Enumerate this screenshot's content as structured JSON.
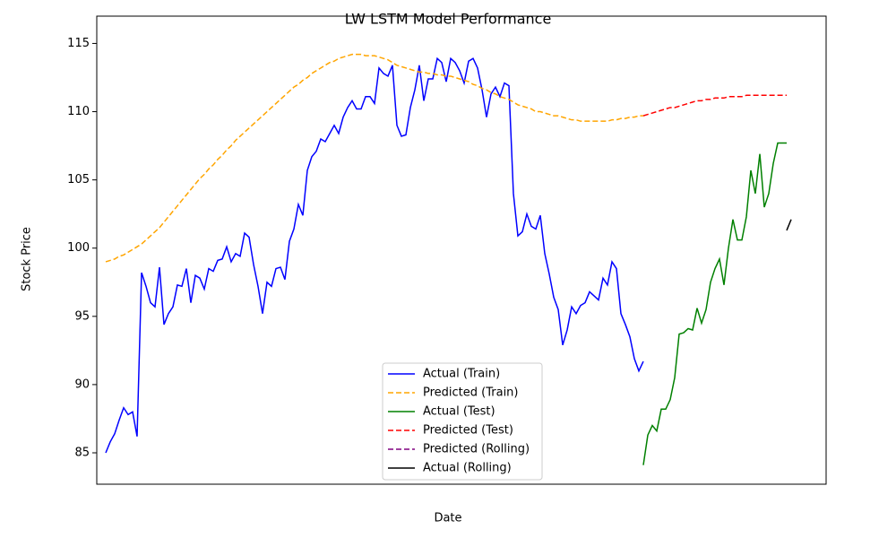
{
  "chart_data": {
    "type": "line",
    "title": "LW LSTM Model Performance",
    "x_label": "Date",
    "y_label": "Stock Price",
    "ylim": [
      82.7,
      117
    ],
    "yticks": [
      85,
      90,
      95,
      100,
      105,
      110,
      115
    ],
    "grid": false,
    "legend": "lower center",
    "series": [
      {
        "name": "Actual (Train)",
        "color": "#0000ff",
        "linestyle": "solid",
        "values": [
          85.0,
          85.8,
          86.4,
          87.4,
          88.3,
          87.8,
          88.0,
          86.2,
          98.2,
          97.2,
          96.0,
          95.7,
          98.6,
          94.4,
          95.2,
          95.7,
          97.3,
          97.2,
          98.5,
          96.0,
          98.0,
          97.8,
          97.0,
          98.5,
          98.3,
          99.1,
          99.2,
          100.1,
          99.0,
          99.6,
          99.4,
          101.1,
          100.8,
          98.8,
          97.2,
          95.2,
          97.5,
          97.2,
          98.5,
          98.6,
          97.7,
          100.5,
          101.4,
          103.2,
          102.4,
          105.7,
          106.7,
          107.1,
          108.0,
          107.8,
          108.4,
          109.0,
          108.4,
          109.6,
          110.3,
          110.8,
          110.2,
          110.2,
          111.1,
          111.1,
          110.6,
          113.2,
          112.8,
          112.6,
          113.4,
          109.0,
          108.2,
          108.3,
          110.3,
          111.6,
          113.4,
          110.8,
          112.4,
          112.4,
          113.9,
          113.6,
          112.2,
          113.9,
          113.6,
          113.0,
          112.1,
          113.7,
          113.9,
          113.2,
          111.6,
          109.6,
          111.3,
          111.8,
          111.1,
          112.1,
          111.9,
          104.0,
          100.9,
          101.2,
          102.5,
          101.6,
          101.4,
          102.4,
          99.6,
          98.1,
          96.4,
          95.5,
          92.9,
          94.0,
          95.7,
          95.2,
          95.8,
          96.0,
          96.8,
          96.5,
          96.2,
          97.8,
          97.3,
          99.0,
          98.5,
          95.2,
          94.4,
          93.5,
          91.9,
          91.0,
          91.7,
          null,
          null,
          null,
          null,
          null,
          null,
          null,
          null,
          null,
          null,
          null,
          null,
          null,
          null,
          null,
          null,
          null,
          null,
          null,
          null,
          null,
          null,
          null,
          null,
          null,
          null,
          null,
          null,
          null,
          null,
          null,
          null,
          null
        ]
      },
      {
        "name": "Predicted (Train)",
        "color": "#ffa500",
        "linestyle": "dashed",
        "values": [
          99.0,
          99.1,
          99.2,
          99.4,
          99.5,
          99.7,
          99.9,
          100.1,
          100.3,
          100.6,
          100.9,
          101.2,
          101.5,
          101.9,
          102.3,
          102.7,
          103.1,
          103.5,
          103.9,
          104.3,
          104.7,
          105.1,
          105.4,
          105.8,
          106.1,
          106.5,
          106.8,
          107.2,
          107.5,
          107.9,
          108.2,
          108.5,
          108.8,
          109.1,
          109.4,
          109.7,
          110.0,
          110.3,
          110.6,
          110.9,
          111.2,
          111.5,
          111.8,
          112.0,
          112.3,
          112.5,
          112.8,
          113.0,
          113.2,
          113.4,
          113.6,
          113.7,
          113.9,
          114.0,
          114.1,
          114.2,
          114.2,
          114.2,
          114.1,
          114.1,
          114.1,
          114.0,
          113.9,
          113.8,
          113.6,
          113.4,
          113.3,
          113.2,
          113.1,
          113.0,
          112.9,
          112.9,
          112.8,
          112.8,
          112.7,
          112.7,
          112.6,
          112.6,
          112.5,
          112.4,
          112.3,
          112.2,
          112.0,
          111.9,
          111.7,
          111.6,
          111.4,
          111.3,
          111.1,
          111.0,
          110.9,
          110.7,
          110.5,
          110.4,
          110.3,
          110.2,
          110.0,
          110.0,
          109.9,
          109.8,
          109.7,
          109.7,
          109.6,
          109.5,
          109.4,
          109.4,
          109.3,
          109.3,
          109.3,
          109.3,
          109.3,
          109.3,
          109.3,
          109.4,
          109.4,
          109.5,
          109.5,
          109.6,
          109.6,
          109.7,
          109.7,
          null,
          null,
          null,
          null,
          null,
          null,
          null,
          null,
          null,
          null,
          null,
          null,
          null,
          null,
          null,
          null,
          null,
          null,
          null,
          null,
          null,
          null,
          null,
          null,
          null,
          null,
          null,
          null,
          null,
          null,
          null,
          null,
          null
        ]
      },
      {
        "name": "Actual (Test)",
        "color": "#008000",
        "linestyle": "solid",
        "values": [
          null,
          null,
          null,
          null,
          null,
          null,
          null,
          null,
          null,
          null,
          null,
          null,
          null,
          null,
          null,
          null,
          null,
          null,
          null,
          null,
          null,
          null,
          null,
          null,
          null,
          null,
          null,
          null,
          null,
          null,
          null,
          null,
          null,
          null,
          null,
          null,
          null,
          null,
          null,
          null,
          null,
          null,
          null,
          null,
          null,
          null,
          null,
          null,
          null,
          null,
          null,
          null,
          null,
          null,
          null,
          null,
          null,
          null,
          null,
          null,
          null,
          null,
          null,
          null,
          null,
          null,
          null,
          null,
          null,
          null,
          null,
          null,
          null,
          null,
          null,
          null,
          null,
          null,
          null,
          null,
          null,
          null,
          null,
          null,
          null,
          null,
          null,
          null,
          null,
          null,
          null,
          null,
          null,
          null,
          null,
          null,
          null,
          null,
          null,
          null,
          null,
          null,
          null,
          null,
          null,
          null,
          null,
          null,
          null,
          null,
          null,
          null,
          null,
          null,
          null,
          null,
          null,
          null,
          null,
          null,
          84.1,
          86.3,
          87.0,
          86.6,
          88.2,
          88.2,
          88.9,
          90.5,
          93.7,
          93.8,
          94.1,
          94.0,
          95.6,
          94.5,
          95.5,
          97.5,
          98.5,
          99.2,
          97.3,
          100.0,
          102.1,
          100.6,
          100.6,
          102.3,
          105.7,
          104.0,
          106.9,
          103.0,
          104.0,
          106.2,
          107.7,
          107.7,
          107.7,
          null
        ]
      },
      {
        "name": "Predicted (Test)",
        "color": "#ff0000",
        "linestyle": "dashed",
        "values": [
          null,
          null,
          null,
          null,
          null,
          null,
          null,
          null,
          null,
          null,
          null,
          null,
          null,
          null,
          null,
          null,
          null,
          null,
          null,
          null,
          null,
          null,
          null,
          null,
          null,
          null,
          null,
          null,
          null,
          null,
          null,
          null,
          null,
          null,
          null,
          null,
          null,
          null,
          null,
          null,
          null,
          null,
          null,
          null,
          null,
          null,
          null,
          null,
          null,
          null,
          null,
          null,
          null,
          null,
          null,
          null,
          null,
          null,
          null,
          null,
          null,
          null,
          null,
          null,
          null,
          null,
          null,
          null,
          null,
          null,
          null,
          null,
          null,
          null,
          null,
          null,
          null,
          null,
          null,
          null,
          null,
          null,
          null,
          null,
          null,
          null,
          null,
          null,
          null,
          null,
          null,
          null,
          null,
          null,
          null,
          null,
          null,
          null,
          null,
          null,
          null,
          null,
          null,
          null,
          null,
          null,
          null,
          null,
          null,
          null,
          null,
          null,
          null,
          null,
          null,
          null,
          null,
          null,
          null,
          null,
          109.7,
          109.8,
          109.9,
          110.0,
          110.1,
          110.2,
          110.3,
          110.3,
          110.4,
          110.5,
          110.6,
          110.7,
          110.8,
          110.8,
          110.9,
          110.9,
          111.0,
          111.0,
          111.0,
          111.1,
          111.1,
          111.1,
          111.1,
          111.2,
          111.2,
          111.2,
          111.2,
          111.2,
          111.2,
          111.2,
          111.2,
          111.2,
          111.2,
          null
        ]
      },
      {
        "name": "Predicted (Rolling)",
        "color": "#800080",
        "linestyle": "dashed",
        "values": [
          null,
          null,
          null,
          null,
          null,
          null,
          null,
          null,
          null,
          null,
          null,
          null,
          null,
          null,
          null,
          null,
          null,
          null,
          null,
          null,
          null,
          null,
          null,
          null,
          null,
          null,
          null,
          null,
          null,
          null,
          null,
          null,
          null,
          null,
          null,
          null,
          null,
          null,
          null,
          null,
          null,
          null,
          null,
          null,
          null,
          null,
          null,
          null,
          null,
          null,
          null,
          null,
          null,
          null,
          null,
          null,
          null,
          null,
          null,
          null,
          null,
          null,
          null,
          null,
          null,
          null,
          null,
          null,
          null,
          null,
          null,
          null,
          null,
          null,
          null,
          null,
          null,
          null,
          null,
          null,
          null,
          null,
          null,
          null,
          null,
          null,
          null,
          null,
          null,
          null,
          null,
          null,
          null,
          null,
          null,
          null,
          null,
          null,
          null,
          null,
          null,
          null,
          null,
          null,
          null,
          null,
          null,
          null,
          null,
          null,
          null,
          null,
          null,
          null,
          null,
          null,
          null,
          null,
          null,
          null,
          null,
          null,
          null,
          null,
          null,
          null,
          null,
          null,
          null,
          null,
          null,
          null,
          null,
          null,
          null,
          null,
          null,
          null,
          null,
          null,
          null,
          null,
          null,
          null,
          null,
          null,
          null,
          null,
          null,
          null,
          null,
          null,
          null,
          null
        ]
      },
      {
        "name": "Actual (Rolling)",
        "color": "#000000",
        "linestyle": "solid",
        "values": [
          null,
          null,
          null,
          null,
          null,
          null,
          null,
          null,
          null,
          null,
          null,
          null,
          null,
          null,
          null,
          null,
          null,
          null,
          null,
          null,
          null,
          null,
          null,
          null,
          null,
          null,
          null,
          null,
          null,
          null,
          null,
          null,
          null,
          null,
          null,
          null,
          null,
          null,
          null,
          null,
          null,
          null,
          null,
          null,
          null,
          null,
          null,
          null,
          null,
          null,
          null,
          null,
          null,
          null,
          null,
          null,
          null,
          null,
          null,
          null,
          null,
          null,
          null,
          null,
          null,
          null,
          null,
          null,
          null,
          null,
          null,
          null,
          null,
          null,
          null,
          null,
          null,
          null,
          null,
          null,
          null,
          null,
          null,
          null,
          null,
          null,
          null,
          null,
          null,
          null,
          null,
          null,
          null,
          null,
          null,
          null,
          null,
          null,
          null,
          null,
          null,
          null,
          null,
          null,
          null,
          null,
          null,
          null,
          null,
          null,
          null,
          null,
          null,
          null,
          null,
          null,
          null,
          null,
          null,
          null,
          null,
          null,
          null,
          null,
          null,
          null,
          null,
          null,
          null,
          null,
          null,
          null,
          null,
          null,
          null,
          null,
          null,
          null,
          null,
          null,
          null,
          null,
          null,
          null,
          null,
          null,
          null,
          null,
          null,
          null,
          null,
          null,
          101.3,
          102.1
        ]
      }
    ]
  }
}
